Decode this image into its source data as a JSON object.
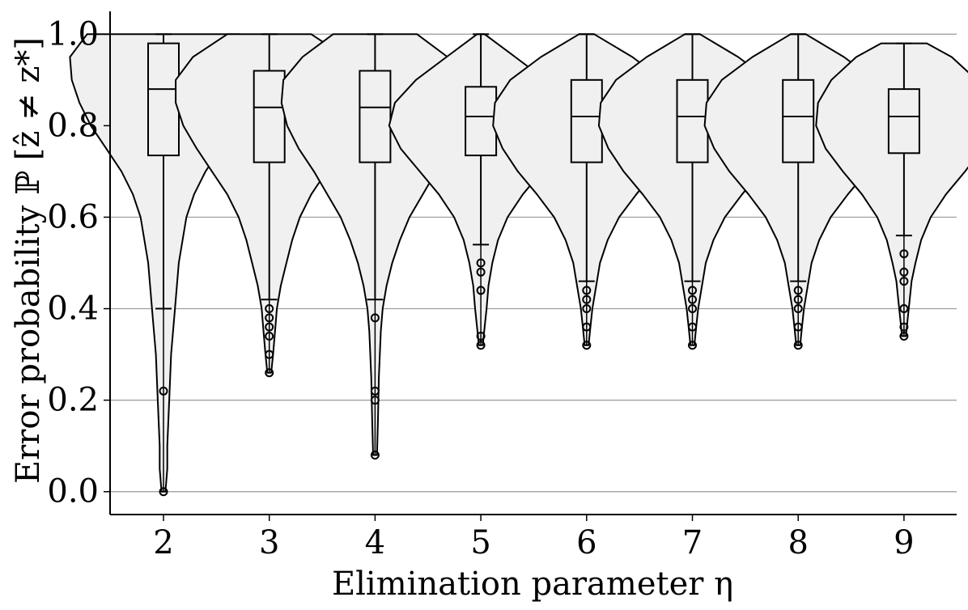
{
  "chart_data": {
    "type": "violin",
    "xlabel": "Elimination parameter η",
    "ylabel": "Error probability ℙ [ẑ ≠ z*]",
    "categories": [
      "2",
      "3",
      "4",
      "5",
      "6",
      "7",
      "8",
      "9"
    ],
    "ylim": [
      -0.05,
      1.05
    ],
    "yticks": [
      0.0,
      0.2,
      0.4,
      0.6,
      0.8,
      1.0
    ],
    "ytick_labels": [
      "0.0",
      "0.2",
      "0.4",
      "0.6",
      "0.8",
      "1.0"
    ],
    "grid": "horizontal",
    "violin_fill": "#f0f0f0",
    "line_color": "#000000",
    "grid_color": "#999999",
    "series": [
      {
        "category": "2",
        "box": {
          "q1": 0.735,
          "median": 0.88,
          "q3": 0.98
        },
        "whiskers": [
          0.4,
          1.0
        ],
        "outliers": [
          0.22,
          0.0
        ],
        "violin": {
          "y": [
            0.0,
            0.05,
            0.1,
            0.2,
            0.3,
            0.4,
            0.5,
            0.6,
            0.65,
            0.7,
            0.75,
            0.8,
            0.85,
            0.9,
            0.95,
            1.0
          ],
          "w": [
            0.01,
            0.02,
            0.02,
            0.03,
            0.04,
            0.06,
            0.08,
            0.12,
            0.16,
            0.22,
            0.3,
            0.38,
            0.44,
            0.48,
            0.49,
            0.4
          ]
        }
      },
      {
        "category": "3",
        "box": {
          "q1": 0.72,
          "median": 0.84,
          "q3": 0.92
        },
        "whiskers": [
          0.42,
          1.0
        ],
        "outliers": [
          0.4,
          0.38,
          0.36,
          0.34,
          0.3,
          0.26
        ],
        "violin": {
          "y": [
            0.26,
            0.3,
            0.35,
            0.4,
            0.45,
            0.5,
            0.55,
            0.6,
            0.65,
            0.7,
            0.75,
            0.8,
            0.85,
            0.9,
            0.95,
            1.0
          ],
          "w": [
            0.01,
            0.02,
            0.03,
            0.04,
            0.06,
            0.09,
            0.12,
            0.16,
            0.22,
            0.3,
            0.38,
            0.45,
            0.49,
            0.49,
            0.4,
            0.22
          ]
        }
      },
      {
        "category": "4",
        "box": {
          "q1": 0.72,
          "median": 0.84,
          "q3": 0.92
        },
        "whiskers": [
          0.42,
          1.0
        ],
        "outliers": [
          0.38,
          0.22,
          0.2,
          0.08
        ],
        "violin": {
          "y": [
            0.08,
            0.15,
            0.25,
            0.35,
            0.4,
            0.45,
            0.5,
            0.55,
            0.6,
            0.65,
            0.7,
            0.75,
            0.8,
            0.85,
            0.9,
            0.95,
            1.0
          ],
          "w": [
            0.01,
            0.015,
            0.02,
            0.03,
            0.04,
            0.06,
            0.09,
            0.13,
            0.18,
            0.25,
            0.32,
            0.4,
            0.46,
            0.49,
            0.48,
            0.38,
            0.22
          ]
        }
      },
      {
        "category": "5",
        "box": {
          "q1": 0.735,
          "median": 0.82,
          "q3": 0.885
        },
        "whiskers": [
          0.54,
          1.0
        ],
        "outliers": [
          0.5,
          0.48,
          0.44,
          0.34,
          0.32
        ],
        "violin": {
          "y": [
            0.32,
            0.36,
            0.4,
            0.45,
            0.5,
            0.55,
            0.6,
            0.65,
            0.7,
            0.75,
            0.8,
            0.85,
            0.9,
            0.95,
            1.0
          ],
          "w": [
            0.01,
            0.02,
            0.03,
            0.04,
            0.06,
            0.09,
            0.14,
            0.22,
            0.32,
            0.42,
            0.48,
            0.45,
            0.34,
            0.18,
            0.02
          ]
        }
      },
      {
        "category": "6",
        "box": {
          "q1": 0.72,
          "median": 0.82,
          "q3": 0.9
        },
        "whiskers": [
          0.46,
          1.0
        ],
        "outliers": [
          0.44,
          0.42,
          0.4,
          0.36,
          0.32
        ],
        "violin": {
          "y": [
            0.32,
            0.36,
            0.4,
            0.45,
            0.5,
            0.55,
            0.6,
            0.65,
            0.7,
            0.75,
            0.8,
            0.85,
            0.9,
            0.95,
            1.0
          ],
          "w": [
            0.01,
            0.02,
            0.03,
            0.05,
            0.07,
            0.11,
            0.17,
            0.26,
            0.36,
            0.44,
            0.49,
            0.48,
            0.4,
            0.24,
            0.04
          ]
        }
      },
      {
        "category": "7",
        "box": {
          "q1": 0.72,
          "median": 0.82,
          "q3": 0.9
        },
        "whiskers": [
          0.46,
          1.0
        ],
        "outliers": [
          0.44,
          0.42,
          0.4,
          0.36,
          0.32
        ],
        "violin": {
          "y": [
            0.32,
            0.36,
            0.4,
            0.45,
            0.5,
            0.55,
            0.6,
            0.65,
            0.7,
            0.75,
            0.8,
            0.85,
            0.9,
            0.95,
            1.0
          ],
          "w": [
            0.01,
            0.02,
            0.03,
            0.05,
            0.07,
            0.11,
            0.17,
            0.26,
            0.36,
            0.44,
            0.49,
            0.48,
            0.4,
            0.24,
            0.04
          ]
        }
      },
      {
        "category": "8",
        "box": {
          "q1": 0.72,
          "median": 0.82,
          "q3": 0.9
        },
        "whiskers": [
          0.46,
          1.0
        ],
        "outliers": [
          0.44,
          0.42,
          0.4,
          0.36,
          0.32
        ],
        "violin": {
          "y": [
            0.32,
            0.36,
            0.4,
            0.45,
            0.5,
            0.55,
            0.6,
            0.65,
            0.7,
            0.75,
            0.8,
            0.85,
            0.9,
            0.95,
            1.0
          ],
          "w": [
            0.01,
            0.02,
            0.03,
            0.05,
            0.07,
            0.11,
            0.17,
            0.26,
            0.36,
            0.44,
            0.49,
            0.48,
            0.4,
            0.24,
            0.04
          ]
        }
      },
      {
        "category": "9",
        "box": {
          "q1": 0.74,
          "median": 0.82,
          "q3": 0.88
        },
        "whiskers": [
          0.56,
          0.98
        ],
        "outliers": [
          0.52,
          0.48,
          0.46,
          0.4,
          0.36,
          0.34
        ],
        "violin": {
          "y": [
            0.34,
            0.38,
            0.42,
            0.46,
            0.5,
            0.55,
            0.6,
            0.65,
            0.7,
            0.75,
            0.8,
            0.85,
            0.9,
            0.95,
            0.98
          ],
          "w": [
            0.01,
            0.02,
            0.03,
            0.04,
            0.06,
            0.09,
            0.14,
            0.22,
            0.32,
            0.41,
            0.46,
            0.45,
            0.38,
            0.25,
            0.12
          ]
        }
      }
    ]
  }
}
